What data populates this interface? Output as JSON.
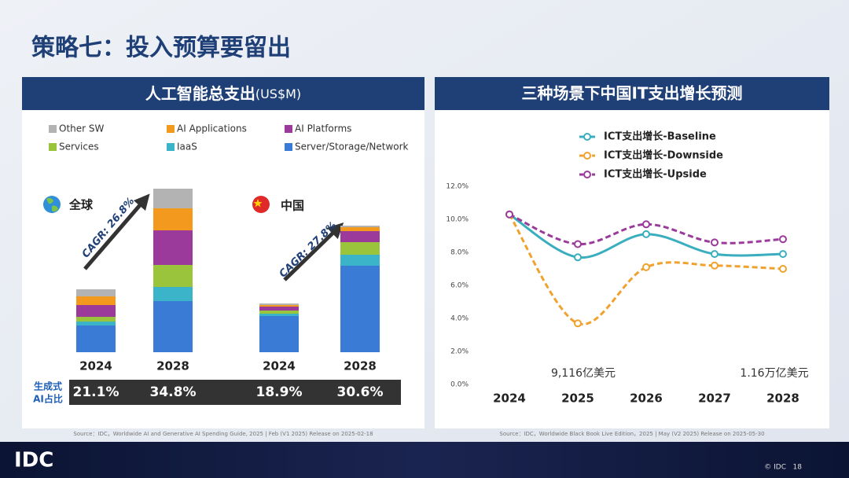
{
  "title": "策略七：投入预算要留出",
  "chart_data": [
    {
      "type": "bar",
      "stacked": true,
      "title": "人工智能总支出",
      "title_unit": "(US$M)",
      "groups": [
        {
          "label": "全球",
          "annotation": "CAGR: 26.8%"
        },
        {
          "label": "中国",
          "annotation": "CAGR: 27.8%"
        }
      ],
      "categories": [
        "2024",
        "2028",
        "2024",
        "2028"
      ],
      "series": [
        {
          "name": "Server/Storage/Network",
          "color": "#3a7bd5",
          "values": [
            34,
            65,
            46,
            110
          ]
        },
        {
          "name": "IaaS",
          "color": "#3bb3c9",
          "values": [
            5,
            18,
            3,
            14
          ]
        },
        {
          "name": "Services",
          "color": "#9ac43c",
          "values": [
            6,
            28,
            4,
            16
          ]
        },
        {
          "name": "AI Platforms",
          "color": "#9b3a9b",
          "values": [
            15,
            44,
            5,
            14
          ]
        },
        {
          "name": "AI Applications",
          "color": "#f39a1e",
          "values": [
            11,
            28,
            2,
            5
          ]
        },
        {
          "name": "Other SW",
          "color": "#b3b3b3",
          "values": [
            9,
            25,
            2,
            2
          ]
        }
      ],
      "genai_share": {
        "label": [
          "生成式",
          "AI占比"
        ],
        "values": [
          21.1,
          34.8,
          18.9,
          30.6
        ],
        "value_labels": [
          "21.1%",
          "34.8%",
          "18.9%",
          "30.6%"
        ]
      },
      "source": "Source：IDC，Worldwide AI and Generative AI Spending Guide, 2025 | Feb (V1 2025) Release on 2025-02-18"
    },
    {
      "type": "line",
      "title": "三种场景下中国IT支出增长预测",
      "categories": [
        "2024",
        "2025",
        "2026",
        "2027",
        "2028"
      ],
      "series": [
        {
          "name": "ICT支出增长-Baseline",
          "color": "#3aaebf",
          "dashed": false,
          "values": [
            10.3,
            7.7,
            9.1,
            7.9,
            7.9
          ]
        },
        {
          "name": "ICT支出增长-Downside",
          "color": "#f0a22e",
          "dashed": true,
          "values": [
            10.3,
            3.7,
            7.1,
            7.2,
            7.0
          ]
        },
        {
          "name": "ICT支出增长-Upside",
          "color": "#9b3a9b",
          "dashed": true,
          "values": [
            10.3,
            8.5,
            9.7,
            8.6,
            8.8
          ]
        }
      ],
      "ylim": [
        0,
        12
      ],
      "yticks": [
        {
          "value": 0,
          "label": "0.0%"
        },
        {
          "value": 2,
          "label": "2.0%"
        },
        {
          "value": 4,
          "label": "4.0%"
        },
        {
          "value": 6,
          "label": "6.0%"
        },
        {
          "value": 8,
          "label": "8.0%"
        },
        {
          "value": 10,
          "label": "10.0%"
        },
        {
          "value": 12,
          "label": "12.0%"
        }
      ],
      "annotations": [
        "9,116亿美元",
        "1.16万亿美元"
      ],
      "source": "Source：IDC，Worldwide Black Book Live Edition，2025 | May (V2 2025) Release on 2025-05-30"
    }
  ],
  "footer": {
    "logo": "IDC",
    "copyright": "© IDC",
    "page": 18
  }
}
